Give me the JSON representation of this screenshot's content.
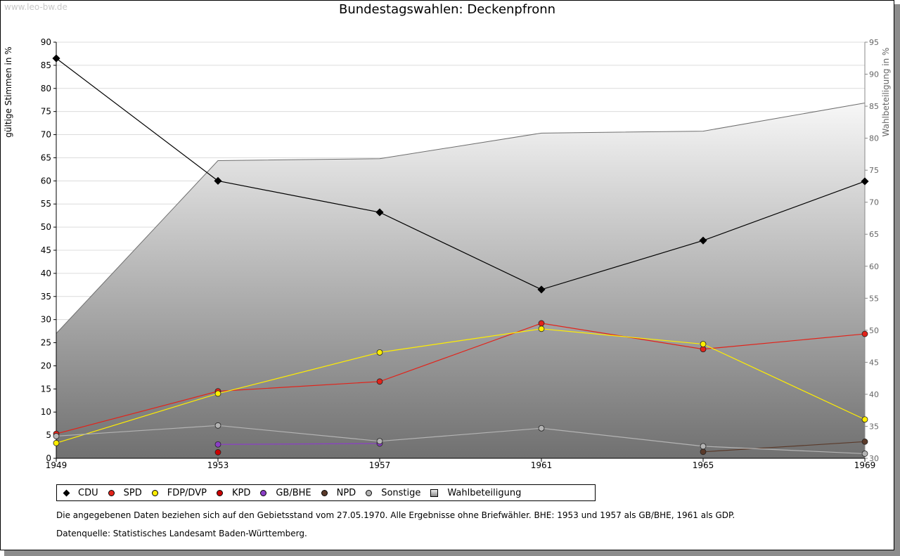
{
  "watermark": "www.leo-bw.de",
  "title": "Bundestagswahlen: Deckenpfronn",
  "chart_data": {
    "type": "line",
    "title": "Bundestagswahlen: Deckenpfronn",
    "x": [
      "1949",
      "1953",
      "1957",
      "1961",
      "1965",
      "1969"
    ],
    "ylabel": "gültige Stimmen in %",
    "ylim": [
      0,
      90
    ],
    "yticks": [
      0,
      5,
      10,
      15,
      20,
      25,
      30,
      35,
      40,
      45,
      50,
      55,
      60,
      65,
      70,
      75,
      80,
      85,
      90
    ],
    "y2label": "Wahlbeteiligung in %",
    "y2lim": [
      30,
      95
    ],
    "y2ticks": [
      30,
      35,
      40,
      45,
      50,
      55,
      60,
      65,
      70,
      75,
      80,
      85,
      90,
      95
    ],
    "series": [
      {
        "name": "CDU",
        "color": "#000000",
        "marker": "diamond",
        "values": [
          86.5,
          60.0,
          53.2,
          36.5,
          47.1,
          59.9
        ]
      },
      {
        "name": "SPD",
        "color": "#e2231a",
        "marker": "dot",
        "values": [
          5.3,
          14.5,
          16.6,
          29.2,
          23.6,
          26.9
        ]
      },
      {
        "name": "FDP/DVP",
        "color": "#ffee00",
        "marker": "dot",
        "values": [
          3.3,
          14.0,
          22.9,
          28.0,
          24.7,
          8.4
        ]
      },
      {
        "name": "KPD",
        "color": "#cc0000",
        "marker": "dot",
        "values": [
          null,
          1.3,
          null,
          null,
          null,
          null
        ]
      },
      {
        "name": "GB/BHE",
        "color": "#8b3fc6",
        "marker": "dot",
        "values": [
          null,
          3.0,
          3.2,
          null,
          null,
          null
        ]
      },
      {
        "name": "NPD",
        "color": "#5a3a2a",
        "marker": "dot",
        "values": [
          null,
          null,
          null,
          null,
          1.4,
          3.6
        ]
      },
      {
        "name": "Sonstige",
        "color": "#b4b4b4",
        "marker": "dot",
        "values": [
          4.8,
          7.1,
          3.7,
          6.5,
          2.6,
          1.0
        ]
      }
    ],
    "area": {
      "name": "Wahlbeteiligung",
      "axis": "right",
      "values": [
        49.5,
        76.5,
        76.8,
        80.8,
        81.1,
        85.5
      ]
    }
  },
  "legend": [
    {
      "label": "CDU",
      "marker": "diamond",
      "color": "#000000"
    },
    {
      "label": "SPD",
      "marker": "dot",
      "color": "#e2231a"
    },
    {
      "label": "FDP/DVP",
      "marker": "dot",
      "color": "#ffee00"
    },
    {
      "label": "KPD",
      "marker": "dot",
      "color": "#cc0000"
    },
    {
      "label": "GB/BHE",
      "marker": "dot",
      "color": "#8b3fc6"
    },
    {
      "label": "NPD",
      "marker": "dot",
      "color": "#5a3a2a"
    },
    {
      "label": "Sonstige",
      "marker": "dot",
      "color": "#b4b4b4"
    },
    {
      "label": "Wahlbeteiligung",
      "marker": "square",
      "color": "#aaaaaa"
    }
  ],
  "notes": {
    "data_note": "Die angegebenen Daten beziehen sich auf den Gebietsstand vom 27.05.1970. Alle Ergebnisse ohne Briefwähler. BHE: 1953 und 1957 als GB/BHE, 1961 als GDP.",
    "source": "Datenquelle: Statistisches Landesamt Baden-Württemberg."
  }
}
